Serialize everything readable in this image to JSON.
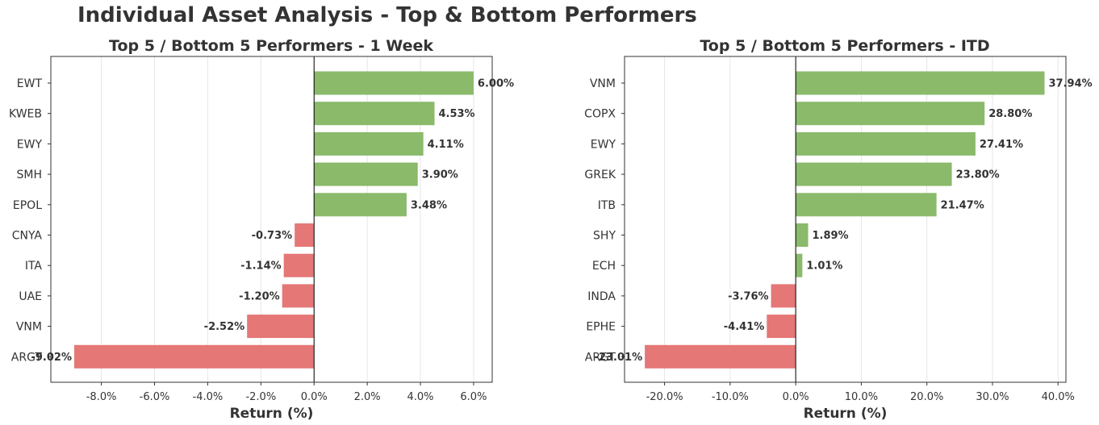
{
  "figure_title": "Individual Asset Analysis - Top & Bottom Performers",
  "colors": {
    "positive": "#8aba6a",
    "negative": "#e57777",
    "grid": "#e6e6e6",
    "axis": "#333333"
  },
  "chart_data": [
    {
      "type": "bar",
      "orientation": "horizontal",
      "title": "Top 5 / Bottom 5 Performers - 1 Week",
      "xlabel": "Return (%)",
      "ylabel": "",
      "categories": [
        "EWT",
        "KWEB",
        "EWY",
        "SMH",
        "EPOL",
        "CNYA",
        "ITA",
        "UAE",
        "VNM",
        "ARGT"
      ],
      "values": [
        6.0,
        4.53,
        4.11,
        3.9,
        3.48,
        -0.73,
        -1.14,
        -1.2,
        -2.52,
        -9.02
      ],
      "value_labels": [
        "6.00%",
        "4.53%",
        "4.11%",
        "3.90%",
        "3.48%",
        "-0.73%",
        "-1.14%",
        "-1.20%",
        "-2.52%",
        "-9.02%"
      ],
      "xlim": [
        -9.9,
        6.7
      ],
      "xticks": [
        -8,
        -6,
        -4,
        -2,
        0,
        2,
        4,
        6
      ],
      "xtick_labels": [
        "-8.0%",
        "-6.0%",
        "-4.0%",
        "-2.0%",
        "0.0%",
        "2.0%",
        "4.0%",
        "6.0%"
      ],
      "grid": "vertical"
    },
    {
      "type": "bar",
      "orientation": "horizontal",
      "title": "Top 5 / Bottom 5 Performers - ITD",
      "xlabel": "Return (%)",
      "ylabel": "",
      "categories": [
        "VNM",
        "COPX",
        "EWY",
        "GREK",
        "ITB",
        "SHY",
        "ECH",
        "INDA",
        "EPHE",
        "ARGT"
      ],
      "values": [
        37.94,
        28.8,
        27.41,
        23.8,
        21.47,
        1.89,
        1.01,
        -3.76,
        -4.41,
        -23.01
      ],
      "value_labels": [
        "37.94%",
        "28.80%",
        "27.41%",
        "23.80%",
        "21.47%",
        "1.89%",
        "1.01%",
        "-3.76%",
        "-4.41%",
        "-23.01%"
      ],
      "xlim": [
        -26.1,
        41.2
      ],
      "xticks": [
        -20,
        -10,
        0,
        10,
        20,
        30,
        40
      ],
      "xtick_labels": [
        "-20.0%",
        "-10.0%",
        "0.0%",
        "10.0%",
        "20.0%",
        "30.0%",
        "40.0%"
      ],
      "grid": "vertical"
    }
  ]
}
